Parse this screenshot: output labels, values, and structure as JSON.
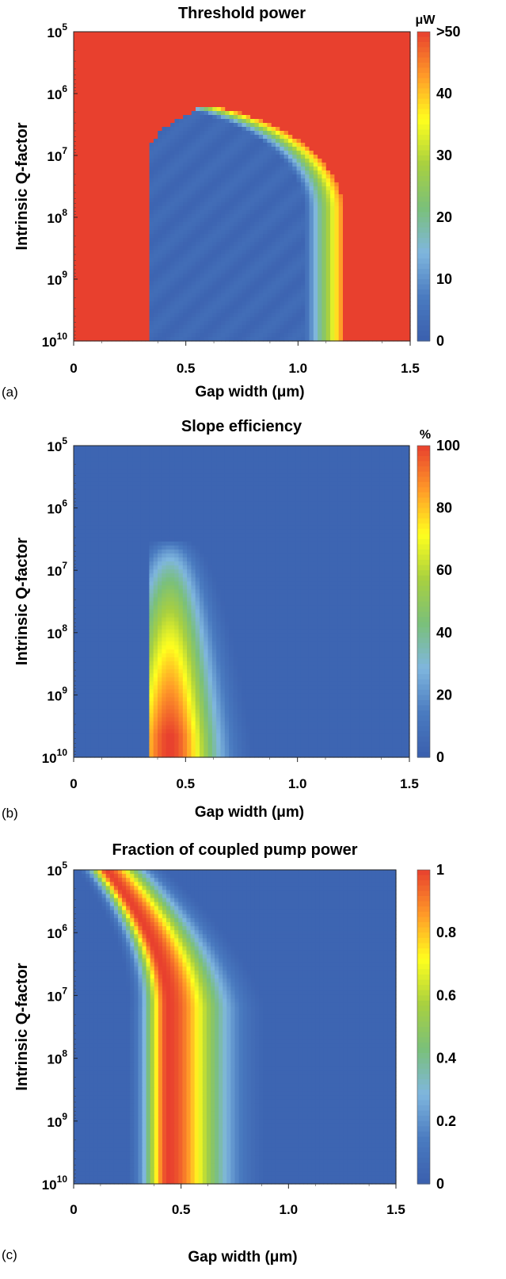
{
  "panels": [
    {
      "id": "a",
      "letter": "(a)",
      "title": "Threshold power",
      "ylabel": "Intrinsic Q-factor",
      "xlabel": "Gap width (μm)",
      "colorbar_unit": "μW",
      "colorbar_ticks": [
        {
          "v": 0,
          "label": "0"
        },
        {
          "v": 10,
          "label": "10"
        },
        {
          "v": 20,
          "label": "20"
        },
        {
          "v": 30,
          "label": "30"
        },
        {
          "v": 40,
          "label": "40"
        },
        {
          "v": 50,
          "label": ">50"
        }
      ]
    },
    {
      "id": "b",
      "letter": "(b)",
      "title": "Slope efficiency",
      "ylabel": "Intrinsic Q-factor",
      "xlabel": "Gap width (μm)",
      "colorbar_unit": "%",
      "colorbar_ticks": [
        {
          "v": 0,
          "label": "0"
        },
        {
          "v": 20,
          "label": "20"
        },
        {
          "v": 40,
          "label": "40"
        },
        {
          "v": 60,
          "label": "60"
        },
        {
          "v": 80,
          "label": "80"
        },
        {
          "v": 100,
          "label": "100"
        }
      ]
    },
    {
      "id": "c",
      "letter": "(c)",
      "title": "Fraction of coupled pump power",
      "ylabel": "Intrinsic Q-factor",
      "xlabel": "Gap width (μm)",
      "colorbar_unit": "",
      "colorbar_ticks": [
        {
          "v": 0,
          "label": "0"
        },
        {
          "v": 0.2,
          "label": "0.2"
        },
        {
          "v": 0.4,
          "label": "0.4"
        },
        {
          "v": 0.6,
          "label": "0.6"
        },
        {
          "v": 0.8,
          "label": "0.8"
        },
        {
          "v": 1,
          "label": "1"
        }
      ]
    }
  ],
  "axes": {
    "x_ticks": [
      "0",
      "0.5",
      "1.0",
      "1.5"
    ],
    "y_ticks": [
      {
        "base": "10",
        "exp": "5"
      },
      {
        "base": "10",
        "exp": "6"
      },
      {
        "base": "10",
        "exp": "7"
      },
      {
        "base": "10",
        "exp": "8"
      },
      {
        "base": "10",
        "exp": "9"
      },
      {
        "base": "10",
        "exp": "10"
      }
    ]
  },
  "colors": {
    "colormap": [
      "#3a5fae",
      "#4a7bc0",
      "#7fb6de",
      "#7ac07a",
      "#a8d040",
      "#ffff1e",
      "#ff9a28",
      "#e8402e"
    ]
  },
  "chart_data": [
    {
      "type": "heatmap",
      "title": "Threshold power",
      "xlabel": "Gap width (μm)",
      "ylabel": "Intrinsic Q-factor",
      "xlim": [
        0,
        1.5
      ],
      "ylim": [
        100000,
        10000000000
      ],
      "y_scale": "log",
      "y_inverted": true,
      "colorbar": {
        "label": "μW",
        "range": [
          0,
          50
        ],
        "max_label": ">50"
      },
      "features": {
        "low_region_x": [
          0.33,
          1.2
        ],
        "low_region_peak_Q": 1300000,
        "low_region_peak_x": 0.65,
        "outside_value": ">50"
      }
    },
    {
      "type": "heatmap",
      "title": "Slope efficiency",
      "xlabel": "Gap width (μm)",
      "ylabel": "Intrinsic Q-factor",
      "xlim": [
        0,
        1.5
      ],
      "ylim": [
        100000,
        10000000000
      ],
      "y_scale": "log",
      "y_inverted": true,
      "colorbar": {
        "label": "%",
        "range": [
          0,
          100
        ]
      },
      "features": {
        "peak_x": 0.43,
        "peak_value": 100,
        "visible_region_x": [
          0.33,
          0.72
        ],
        "visible_region_top_Q": 40000000
      }
    },
    {
      "type": "heatmap",
      "title": "Fraction of coupled pump power",
      "xlabel": "Gap width (μm)",
      "ylabel": "Intrinsic Q-factor",
      "xlim": [
        0,
        1.5
      ],
      "ylim": [
        100000,
        10000000000
      ],
      "y_scale": "log",
      "y_inverted": true,
      "colorbar": {
        "label": "",
        "range": [
          0,
          1
        ]
      },
      "features": {
        "critical_coupling_x_at_Q1e10": 0.44,
        "critical_coupling_x_at_Q1e5": 0.15,
        "peak_value": 1
      }
    }
  ]
}
